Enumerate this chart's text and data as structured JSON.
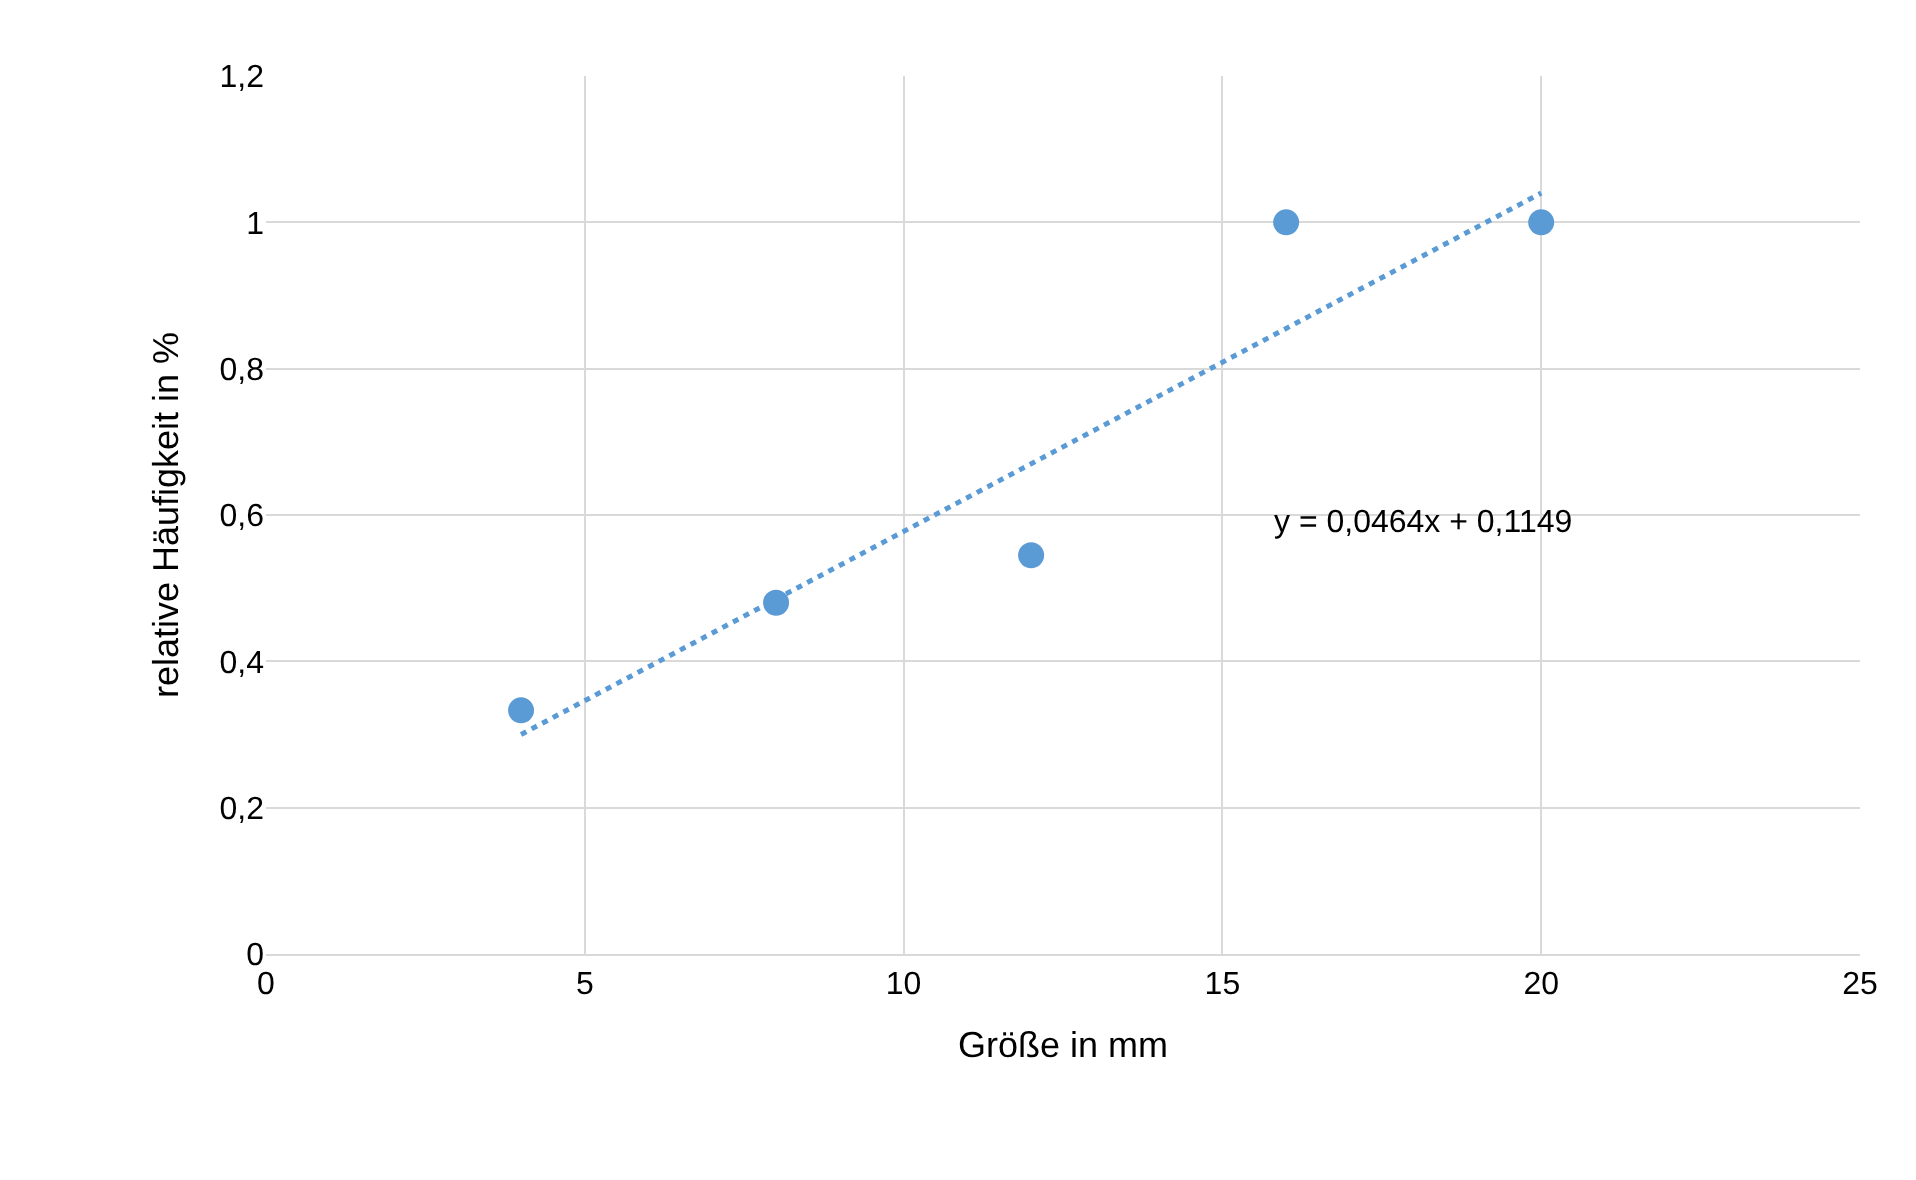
{
  "chart_data": {
    "type": "scatter",
    "xlabel": "Größe in mm",
    "ylabel": "relative Häufigkeit in %",
    "series": [
      {
        "color": "#5b9bd5",
        "marker": "circle",
        "x": [
          4,
          8,
          12,
          16,
          20
        ],
        "values": [
          0.333,
          0.48,
          0.545,
          1,
          1
        ]
      },
      {
        "type": "line",
        "color": "#5b9bd5",
        "line_style": "dotted",
        "marker": "none",
        "x": [
          4,
          20
        ],
        "values": [
          0.3,
          1.04
        ]
      }
    ],
    "annotations": [
      "y = 0,0464x + 0,1149"
    ],
    "xlim": [
      0,
      25
    ],
    "xticks": [
      0,
      5,
      10,
      15,
      20,
      25
    ],
    "ylim": [
      0,
      1.2
    ],
    "yticks": [
      0,
      {
        "value": 0.2,
        "label": "0,2"
      },
      {
        "value": 0.4,
        "label": "0,4"
      },
      {
        "value": 0.6,
        "label": "0,6"
      },
      {
        "value": 0.8,
        "label": "0,8"
      },
      1,
      {
        "value": 1.2,
        "label": "1,2"
      }
    ],
    "grid": true
  }
}
